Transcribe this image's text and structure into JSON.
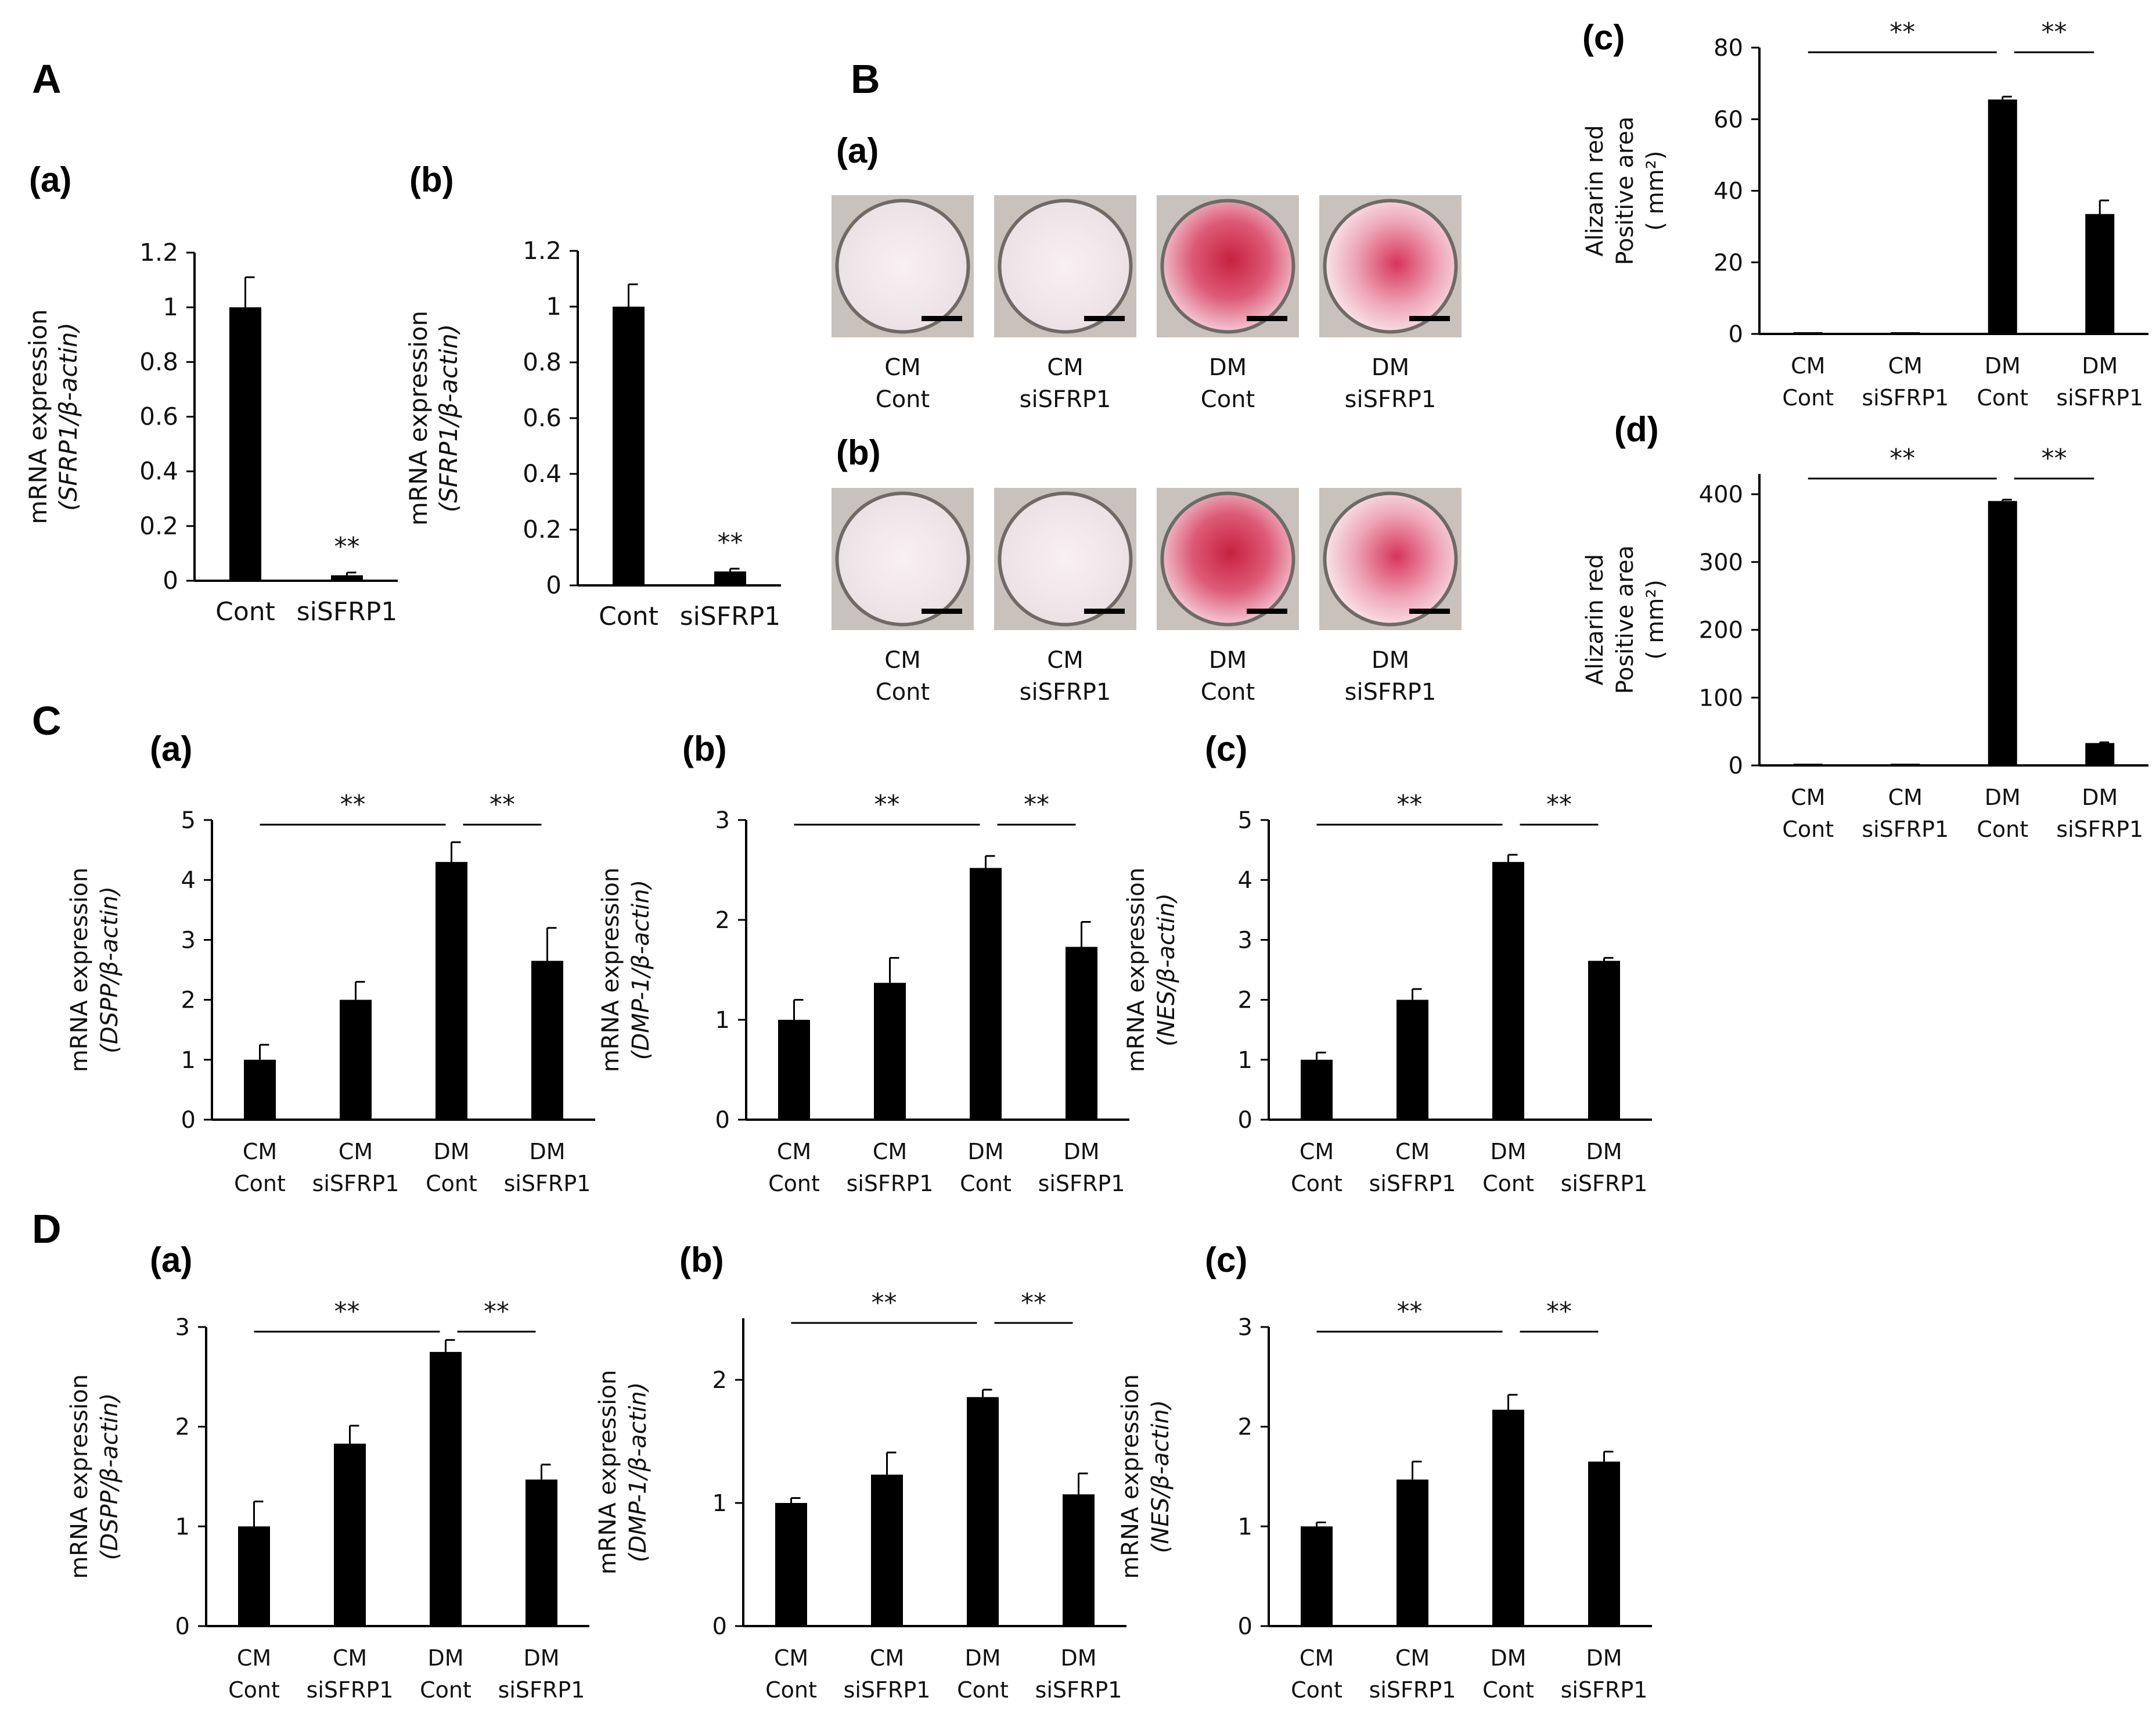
{
  "colors": {
    "bar": "#000000",
    "axis": "#000000",
    "text": "#111111",
    "stain_light": "#f6eef0",
    "stain_red": "#d84468"
  },
  "panel_letters": {
    "A": "A",
    "B": "B",
    "C": "C",
    "D": "D"
  },
  "sub_letters": {
    "A_a": "(a)",
    "A_b": "(b)",
    "B_a": "(a)",
    "B_b": "(b)",
    "B_c": "(c)",
    "B_d": "(d)",
    "C_a": "(a)",
    "C_b": "(b)",
    "C_c": "(c)",
    "D_a": "(a)",
    "D_b": "(b)",
    "D_c": "(c)"
  },
  "stain_panels": {
    "a": {
      "labels": [
        [
          "CM",
          "Cont"
        ],
        [
          "CM",
          "siSFRP1"
        ],
        [
          "DM",
          "Cont"
        ],
        [
          "DM",
          "siSFRP1"
        ]
      ],
      "stain": [
        "light",
        "light",
        "red",
        "red"
      ]
    },
    "b": {
      "labels": [
        [
          "CM",
          "Cont"
        ],
        [
          "CM",
          "siSFRP1"
        ],
        [
          "DM",
          "Cont"
        ],
        [
          "DM",
          "siSFRP1"
        ]
      ],
      "stain": [
        "light",
        "light",
        "red",
        "red"
      ]
    }
  },
  "chart_data": [
    {
      "id": "A_a",
      "type": "bar",
      "categories": [
        [
          "Cont"
        ],
        [
          "siSFRP1"
        ]
      ],
      "values": [
        1.0,
        0.02
      ],
      "errors": [
        0.11,
        0.01
      ],
      "ylim": [
        0,
        1.2
      ],
      "yticks": [
        "0",
        "0.2",
        "0.4",
        "0.6",
        "0.8",
        "1",
        "1.2"
      ],
      "ylabel": "mRNA expression",
      "ylabel2": "(SFRP1/β-actin)",
      "annotations": [
        {
          "bar": 1,
          "text": "**"
        }
      ]
    },
    {
      "id": "A_b",
      "type": "bar",
      "categories": [
        [
          "Cont"
        ],
        [
          "siSFRP1"
        ]
      ],
      "values": [
        1.0,
        0.05
      ],
      "errors": [
        0.08,
        0.01
      ],
      "ylim": [
        0,
        1.2
      ],
      "yticks": [
        "0",
        "0.2",
        "0.4",
        "0.6",
        "0.8",
        "1",
        "1.2"
      ],
      "ylabel": "mRNA expression",
      "ylabel2": "(SFRP1/β-actin)",
      "annotations": [
        {
          "bar": 1,
          "text": "**"
        }
      ]
    },
    {
      "id": "B_c",
      "type": "bar",
      "categories": [
        [
          "CM",
          "Cont"
        ],
        [
          "CM",
          "siSFRP1"
        ],
        [
          "DM",
          "Cont"
        ],
        [
          "DM",
          "siSFRP1"
        ]
      ],
      "values": [
        0,
        0,
        65.5,
        33.5
      ],
      "errors": [
        0,
        0,
        0.8,
        3.8
      ],
      "ylim": [
        0,
        80
      ],
      "yticks": [
        "0",
        "20",
        "40",
        "60",
        "80"
      ],
      "ylabel": "Alizarin red",
      "ylabel2": "Positive area",
      "ylabel3": "( mm²)",
      "brackets": [
        {
          "from": 0,
          "to": 2,
          "text": "**"
        },
        {
          "from": 2,
          "to": 3,
          "text": "**"
        }
      ]
    },
    {
      "id": "B_d",
      "type": "bar",
      "categories": [
        [
          "CM",
          "Cont"
        ],
        [
          "CM",
          "siSFRP1"
        ],
        [
          "DM",
          "Cont"
        ],
        [
          "DM",
          "siSFRP1"
        ]
      ],
      "values": [
        0,
        1,
        390,
        33
      ],
      "errors": [
        0,
        0,
        2,
        1
      ],
      "ylim": [
        0,
        430
      ],
      "yticks": [
        "0",
        "100",
        "200",
        "300",
        "400"
      ],
      "ylabel": "Alizarin red",
      "ylabel2": "Positive area",
      "ylabel3": "( mm²)",
      "brackets": [
        {
          "from": 0,
          "to": 2,
          "text": "**"
        },
        {
          "from": 2,
          "to": 3,
          "text": "**"
        }
      ]
    },
    {
      "id": "C_a",
      "type": "bar",
      "categories": [
        [
          "CM",
          "Cont"
        ],
        [
          "CM",
          "siSFRP1"
        ],
        [
          "DM",
          "Cont"
        ],
        [
          "DM",
          "siSFRP1"
        ]
      ],
      "values": [
        1.0,
        2.0,
        4.3,
        2.65
      ],
      "errors": [
        0.25,
        0.3,
        0.33,
        0.55
      ],
      "ylim": [
        0,
        5
      ],
      "yticks": [
        "0",
        "1",
        "2",
        "3",
        "4",
        "5"
      ],
      "ylabel": "mRNA expression",
      "ylabel2": "(DSPP/β-actin)",
      "brackets": [
        {
          "from": 0,
          "to": 2,
          "text": "**"
        },
        {
          "from": 2,
          "to": 3,
          "text": "**"
        }
      ]
    },
    {
      "id": "C_b",
      "type": "bar",
      "categories": [
        [
          "CM",
          "Cont"
        ],
        [
          "CM",
          "siSFRP1"
        ],
        [
          "DM",
          "Cont"
        ],
        [
          "DM",
          "siSFRP1"
        ]
      ],
      "values": [
        1.0,
        1.37,
        2.52,
        1.73
      ],
      "errors": [
        0.2,
        0.25,
        0.12,
        0.25
      ],
      "ylim": [
        0,
        3
      ],
      "yticks": [
        "0",
        "1",
        "2",
        "3"
      ],
      "ylabel": "mRNA expression",
      "ylabel2": "(DMP-1/β-actin)",
      "brackets": [
        {
          "from": 0,
          "to": 2,
          "text": "**"
        },
        {
          "from": 2,
          "to": 3,
          "text": "**"
        }
      ]
    },
    {
      "id": "C_c",
      "type": "bar",
      "categories": [
        [
          "CM",
          "Cont"
        ],
        [
          "CM",
          "siSFRP1"
        ],
        [
          "DM",
          "Cont"
        ],
        [
          "DM",
          "siSFRP1"
        ]
      ],
      "values": [
        1.0,
        2.0,
        4.3,
        2.65
      ],
      "errors": [
        0.12,
        0.18,
        0.12,
        0.05
      ],
      "ylim": [
        0,
        5
      ],
      "yticks": [
        "0",
        "1",
        "2",
        "3",
        "4",
        "5"
      ],
      "ylabel": "mRNA expression",
      "ylabel2": "(NES/β-actin)",
      "brackets": [
        {
          "from": 0,
          "to": 2,
          "text": "**"
        },
        {
          "from": 2,
          "to": 3,
          "text": "**"
        }
      ]
    },
    {
      "id": "D_a",
      "type": "bar",
      "categories": [
        [
          "CM",
          "Cont"
        ],
        [
          "CM",
          "siSFRP1"
        ],
        [
          "DM",
          "Cont"
        ],
        [
          "DM",
          "siSFRP1"
        ]
      ],
      "values": [
        1.0,
        1.83,
        2.75,
        1.47
      ],
      "errors": [
        0.25,
        0.18,
        0.12,
        0.15
      ],
      "ylim": [
        0,
        3
      ],
      "yticks": [
        "0",
        "1",
        "2",
        "3"
      ],
      "ylabel": "mRNA expression",
      "ylabel2": "(DSPP/β-actin)",
      "brackets": [
        {
          "from": 0,
          "to": 2,
          "text": "**"
        },
        {
          "from": 2,
          "to": 3,
          "text": "**"
        }
      ]
    },
    {
      "id": "D_b",
      "type": "bar",
      "categories": [
        [
          "CM",
          "Cont"
        ],
        [
          "CM",
          "siSFRP1"
        ],
        [
          "DM",
          "Cont"
        ],
        [
          "DM",
          "siSFRP1"
        ]
      ],
      "values": [
        1.0,
        1.23,
        1.86,
        1.07
      ],
      "errors": [
        0.04,
        0.18,
        0.06,
        0.17
      ],
      "ylim": [
        0,
        2.5
      ],
      "yticks": [
        "0",
        "1",
        "2"
      ],
      "ylabel": "mRNA expression",
      "ylabel2": "(DMP-1/β-actin)",
      "brackets": [
        {
          "from": 0,
          "to": 2,
          "text": "**"
        },
        {
          "from": 2,
          "to": 3,
          "text": "**"
        }
      ]
    },
    {
      "id": "D_c",
      "type": "bar",
      "categories": [
        [
          "CM",
          "Cont"
        ],
        [
          "CM",
          "siSFRP1"
        ],
        [
          "DM",
          "Cont"
        ],
        [
          "DM",
          "siSFRP1"
        ]
      ],
      "values": [
        1.0,
        1.47,
        2.17,
        1.65
      ],
      "errors": [
        0.04,
        0.18,
        0.15,
        0.1
      ],
      "ylim": [
        0,
        3
      ],
      "yticks": [
        "0",
        "1",
        "2",
        "3"
      ],
      "ylabel": "mRNA expression",
      "ylabel2": "(NES/β-actin)",
      "brackets": [
        {
          "from": 0,
          "to": 2,
          "text": "**"
        },
        {
          "from": 2,
          "to": 3,
          "text": "**"
        }
      ]
    }
  ]
}
